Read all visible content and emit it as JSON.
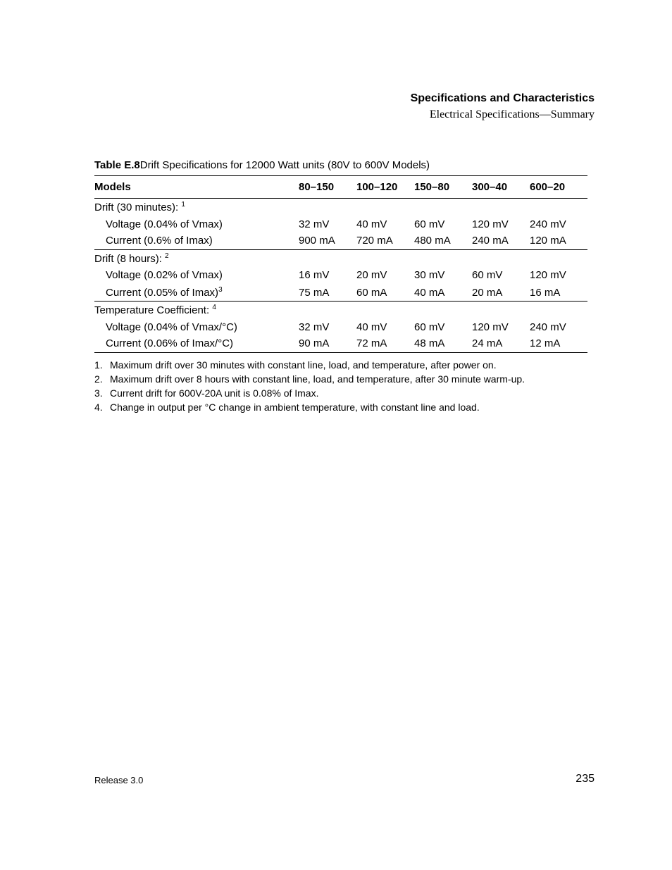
{
  "header": {
    "title": "Specifications and Characteristics",
    "subtitle": "Electrical Specifications—Summary"
  },
  "table": {
    "caption_label": "Table E.8",
    "caption_text": "Drift Specifications for 12000 Watt units (80V to 600V Models)",
    "columns": [
      "Models",
      "80–150",
      "100–120",
      "150–80",
      "300–40",
      "600–20"
    ],
    "groups": [
      {
        "heading": "Drift (30 minutes):",
        "heading_sup": "1",
        "rows": [
          {
            "label": "Voltage (0.04% of Vmax)",
            "values": [
              "32 mV",
              "40 mV",
              "60 mV",
              "120 mV",
              "240 mV"
            ]
          },
          {
            "label": "Current (0.6% of Imax)",
            "values": [
              "900 mA",
              "720 mA",
              "480 mA",
              "240 mA",
              "120 mA"
            ]
          }
        ]
      },
      {
        "heading": "Drift (8 hours):",
        "heading_sup": "2",
        "rows": [
          {
            "label": "Voltage (0.02% of Vmax)",
            "values": [
              "16 mV",
              "20 mV",
              "30 mV",
              "60 mV",
              "120 mV"
            ]
          },
          {
            "label": "Current (0.05% of Imax)",
            "label_sup": "3",
            "values": [
              "75 mA",
              "60 mA",
              "40 mA",
              "20 mA",
              "16 mA"
            ]
          }
        ]
      },
      {
        "heading": "Temperature Coefficient:",
        "heading_sup": "4",
        "rows": [
          {
            "label": "Voltage (0.04% of Vmax/°C)",
            "values": [
              "32 mV",
              "40 mV",
              "60 mV",
              "120 mV",
              "240 mV"
            ]
          },
          {
            "label": "Current (0.06% of Imax/°C)",
            "values": [
              "90 mA",
              "72 mA",
              "48 mA",
              "24 mA",
              "12 mA"
            ]
          }
        ]
      }
    ]
  },
  "footnotes": [
    "Maximum drift over 30 minutes with constant line, load, and temperature, after power on.",
    "Maximum drift over 8 hours with constant line, load, and temperature, after 30 minute warm-up.",
    "Current drift for 600V-20A unit is 0.08% of Imax.",
    "Change in output per °C change in ambient temperature, with constant line and load."
  ],
  "footer": {
    "release": "Release 3.0",
    "page": "235"
  }
}
